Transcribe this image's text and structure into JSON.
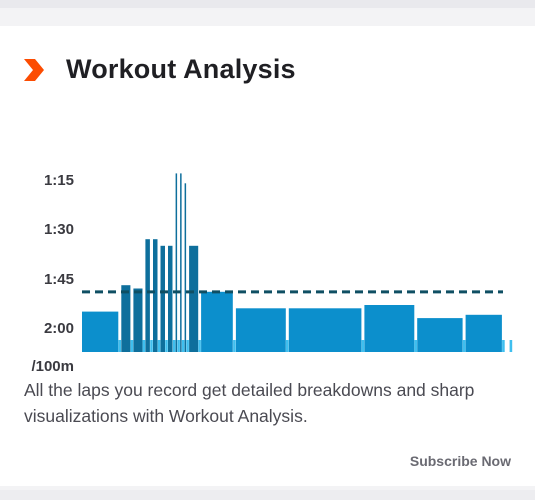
{
  "card": {
    "title": "Workout Analysis",
    "description": "All the laps you record get detailed breakdowns and sharp visualizations with Workout Analysis.",
    "subscribe_label": "Subscribe Now",
    "accent_color": "#fc4c02",
    "icon": "chevron-right-icon"
  },
  "chart_data": {
    "type": "bar",
    "title": "",
    "xlabel": "",
    "ylabel": "/100m",
    "y_axis_reversed": true,
    "y_tick_labels": [
      "1:15",
      "1:30",
      "1:45",
      "2:00",
      "/100m"
    ],
    "y_tick_seconds": [
      75,
      90,
      105,
      120
    ],
    "ylim_seconds": [
      135,
      62
    ],
    "average_pace_seconds": 109,
    "average_line_style": "dashed",
    "bar_color": "#0c8fcc",
    "dark_bar_color": "#0e6f9c",
    "rest_marker_color": "#3fbfef",
    "average_line_color": "#0f4f63",
    "grid": false,
    "laps": [
      {
        "pace_seconds": 115,
        "weight": 8
      },
      {
        "pace_seconds": 107,
        "weight": 2
      },
      {
        "pace_seconds": 108,
        "weight": 2
      },
      {
        "pace_seconds": 93,
        "weight": 1
      },
      {
        "pace_seconds": 93,
        "weight": 1
      },
      {
        "pace_seconds": 95,
        "weight": 1
      },
      {
        "pace_seconds": 95,
        "weight": 1
      },
      {
        "pace_seconds": 73,
        "weight": 0.3
      },
      {
        "pace_seconds": 73,
        "weight": 0.3
      },
      {
        "pace_seconds": 76,
        "weight": 0.3
      },
      {
        "pace_seconds": 95,
        "weight": 2
      },
      {
        "pace_seconds": 109,
        "weight": 7
      },
      {
        "pace_seconds": 114,
        "weight": 11
      },
      {
        "pace_seconds": 114,
        "weight": 16
      },
      {
        "pace_seconds": 113,
        "weight": 11
      },
      {
        "pace_seconds": 117,
        "weight": 10
      },
      {
        "pace_seconds": 116,
        "weight": 8
      },
      {
        "pace_seconds": 131,
        "weight": 1
      }
    ]
  }
}
